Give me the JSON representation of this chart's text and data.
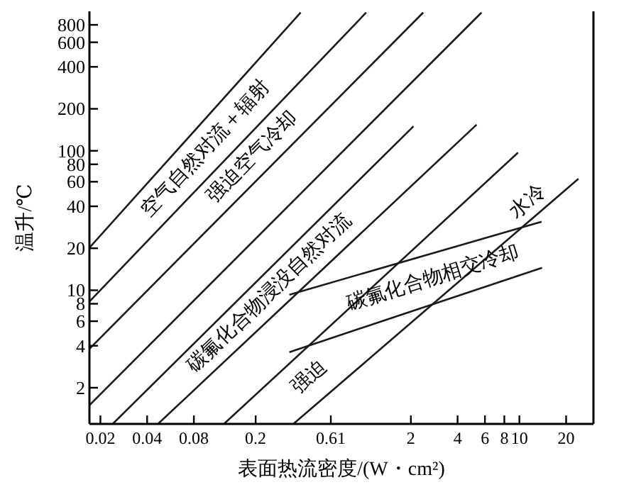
{
  "chart_data": {
    "type": "line",
    "xlabel": "表面热流密度/(W・cm²)",
    "ylabel": "温升/℃",
    "log": "xy",
    "xlim": [
      0.017,
      30
    ],
    "ylim": [
      1.1,
      1000
    ],
    "xticks": [
      0.02,
      0.04,
      0.08,
      0.2,
      0.61,
      2,
      4,
      6,
      8,
      10,
      20
    ],
    "yticks": [
      2,
      4,
      6,
      8,
      10,
      20,
      40,
      60,
      80,
      100,
      200,
      400,
      600,
      800
    ],
    "grid": false,
    "marker": "none",
    "line_style": "solid",
    "series": [
      {
        "color": "#1a1a1a",
        "x": [
          0.017,
          0.39
        ],
        "values": [
          20.2,
          980
        ]
      },
      {
        "color": "#1a1a1a",
        "x": [
          0.017,
          1.03
        ],
        "values": [
          8.3,
          980
        ]
      },
      {
        "color": "#1a1a1a",
        "x": [
          0.017,
          2.4
        ],
        "values": [
          3.8,
          980
        ]
      },
      {
        "color": "#1a1a1a",
        "x": [
          0.017,
          5.7
        ],
        "values": [
          1.5,
          980
        ]
      },
      {
        "color": "#1a1a1a",
        "x": [
          0.024,
          2.08
        ],
        "values": [
          1.1,
          150
        ]
      },
      {
        "color": "#1a1a1a",
        "x": [
          0.047,
          5.3
        ],
        "values": [
          1.1,
          154
        ]
      },
      {
        "color": "#1a1a1a",
        "x": [
          0.125,
          9.8
        ],
        "values": [
          1.1,
          97
        ]
      },
      {
        "color": "#1a1a1a",
        "x": [
          0.35,
          24
        ],
        "values": [
          1.1,
          63
        ]
      },
      {
        "color": "#1a1a1a",
        "x": [
          0.33,
          13.9
        ],
        "values": [
          9.3,
          31
        ]
      },
      {
        "color": "#1a1a1a",
        "x": [
          0.33,
          14
        ],
        "values": [
          3.6,
          14.5
        ]
      }
    ],
    "annotations": [
      "空气自然对流＋辐射",
      "强迫空气冷却",
      "碳氟化合物浸没自然对流",
      "强迫",
      "水冷",
      "碳氟化合物相交冷却"
    ]
  }
}
